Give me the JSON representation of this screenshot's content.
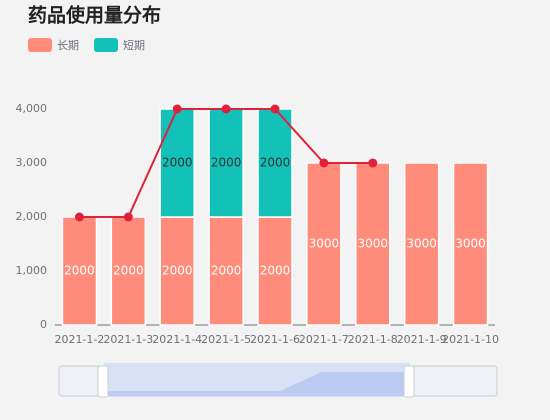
{
  "chart_data": {
    "type": "bar",
    "title": "药品使用量分布",
    "categories": [
      "2021-1-2",
      "2021-1-3",
      "2021-1-4",
      "2021-1-5",
      "2021-1-6",
      "2021-1-7",
      "2021-1-8",
      "2021-1-9",
      "2021-1-10"
    ],
    "series": [
      {
        "name": "长期",
        "color": "#ff8c7a",
        "values": [
          2000,
          2000,
          2000,
          2000,
          2000,
          3000,
          3000,
          3000,
          3000
        ]
      },
      {
        "name": "短期",
        "color": "#12c2b8",
        "values": [
          null,
          null,
          2000,
          2000,
          2000,
          null,
          null,
          null,
          null
        ]
      }
    ],
    "line": {
      "color": "#e0213a",
      "values": [
        2000,
        2000,
        4000,
        4000,
        4000,
        3000,
        3000,
        null,
        null
      ]
    },
    "stacked": true,
    "ylim": [
      0,
      4000
    ],
    "yticks": [
      0,
      {
        "value": 1000,
        "label": "1,000"
      },
      {
        "value": 2000,
        "label": "2,000"
      },
      {
        "value": 3000,
        "label": "3,000"
      },
      {
        "value": 4000,
        "label": "4,000"
      }
    ],
    "grid": false
  }
}
